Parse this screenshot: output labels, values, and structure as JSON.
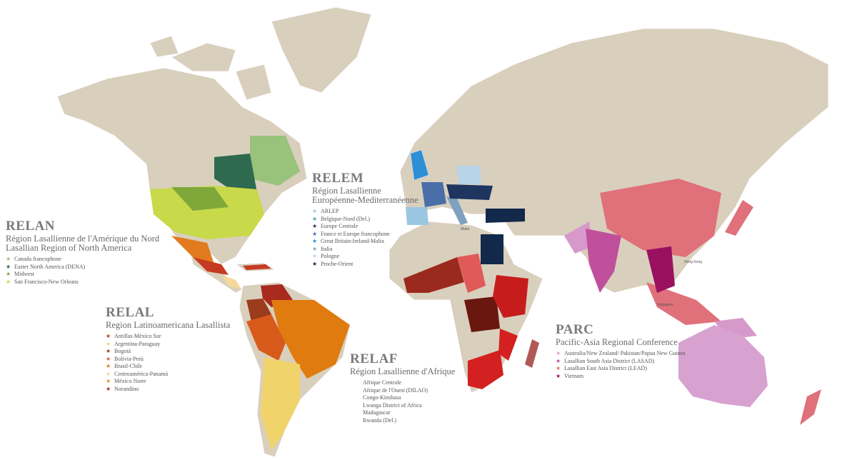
{
  "regions": [
    {
      "acronym": "RELAN",
      "subtitle": [
        "Région Lasallienne de l'Amérique du Nord",
        "Lasallian Region of North America"
      ],
      "items": [
        {
          "text": "Canada francophone",
          "color": "#99c27b"
        },
        {
          "text": "Easter North America (DENA)",
          "color": "#2d6a4f"
        },
        {
          "text": "Midwest",
          "color": "#7fa83a"
        },
        {
          "text": "San Francisco-New Orleans",
          "color": "#c8d94a"
        }
      ]
    },
    {
      "acronym": "RELEM",
      "subtitle": [
        "Région Lasallienne",
        "Européenne-Mediterranéenne"
      ],
      "items": [
        {
          "text": "ARLEP",
          "color": "#9bc6e2"
        },
        {
          "text": "Belgique-Nord (Del.)",
          "color": "#4f9fa8"
        },
        {
          "text": "Europe Centrale",
          "color": "#1e3560"
        },
        {
          "text": "France et Europe francophone",
          "color": "#4a6ea8"
        },
        {
          "text": "Great Britain-Ireland-Malta",
          "color": "#2f8fd6"
        },
        {
          "text": "Italia",
          "color": "#7da1be"
        },
        {
          "text": "Pologne",
          "color": "#b7d4e8"
        },
        {
          "text": "Proche-Orient",
          "color": "#13294b"
        }
      ]
    },
    {
      "acronym": "RELAL",
      "subtitle": [
        "Region Latinoamericana Lasallista"
      ],
      "items": [
        {
          "text": "Antillas-México Sur",
          "color": "#c73a22"
        },
        {
          "text": "Argentina-Paraguay",
          "color": "#f1d36c"
        },
        {
          "text": "Bogotá",
          "color": "#9b3b1b"
        },
        {
          "text": "Bolivia-Perú",
          "color": "#d85a1a"
        },
        {
          "text": "Brasil-Chile",
          "color": "#e07b10"
        },
        {
          "text": "Centroamérica-Panamá",
          "color": "#f5d99a"
        },
        {
          "text": "México Norte",
          "color": "#e8901f"
        },
        {
          "text": "Norandino",
          "color": "#a82a1e"
        }
      ]
    },
    {
      "acronym": "RELAF",
      "subtitle": [
        "Région Lasallienne d'Afrique"
      ],
      "items": [
        {
          "text": "Afrique Centrale"
        },
        {
          "text": "Afrique de l'Ouest (DILAO)"
        },
        {
          "text": "Congo-Kinshasa"
        },
        {
          "text": "Lwanga District of Africa"
        },
        {
          "text": "Madagascar"
        },
        {
          "text": "Rwanda (Del.)"
        }
      ]
    },
    {
      "acronym": "PARC",
      "subtitle": [
        "Pacific-Asia Regional Conference"
      ],
      "items": [
        {
          "text": "Australia/New Zealand/ Pakistan/Papua New Guinea",
          "color": "#d7a2cf"
        },
        {
          "text": "Lasallian South Asia District (LASAD)",
          "color": "#c0509b"
        },
        {
          "text": "Lasallian East Asia District (LEAD)",
          "color": "#e0707a"
        },
        {
          "text": "Vietnam",
          "color": "#9a1060"
        }
      ]
    }
  ],
  "map_labels": [
    "Hong Kong",
    "Singapore",
    "Malta"
  ]
}
